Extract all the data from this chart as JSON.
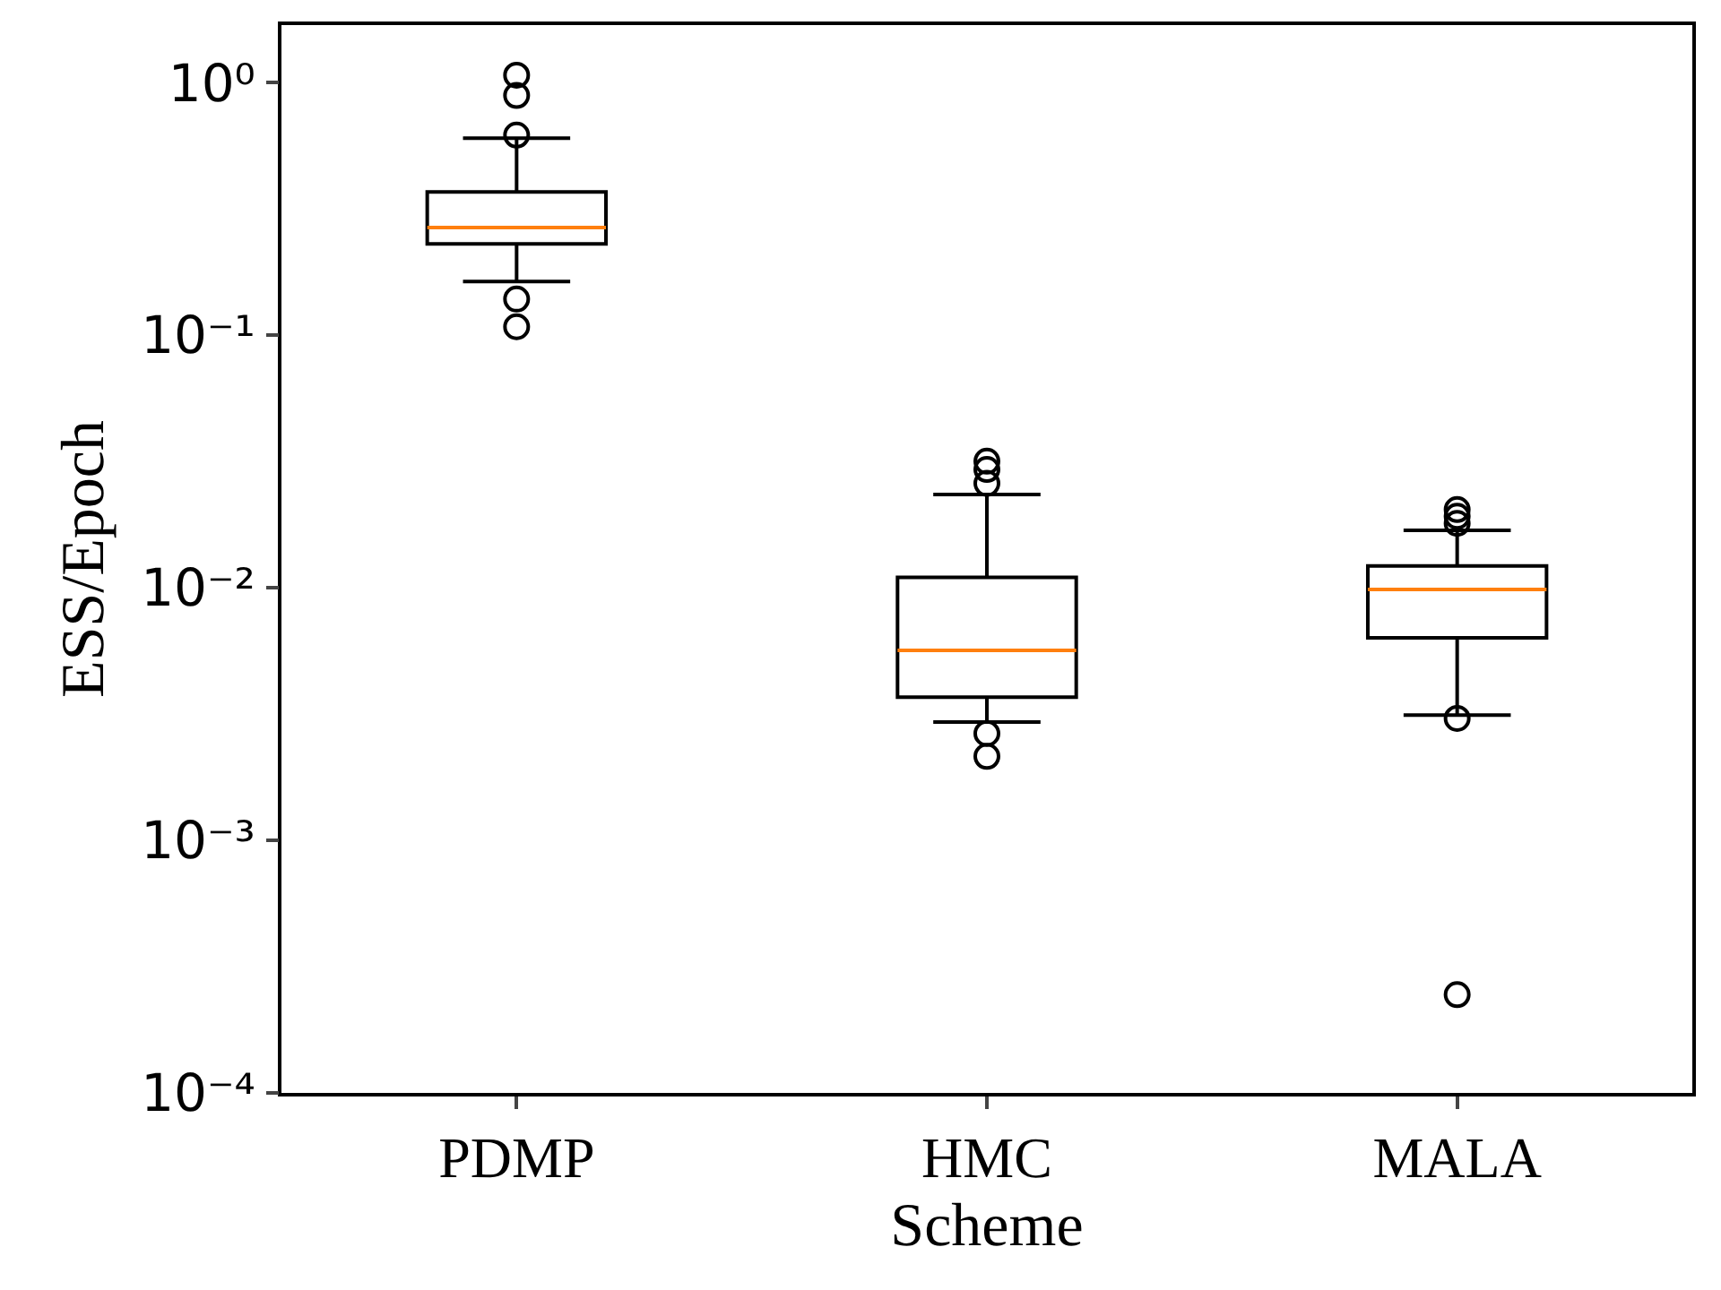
{
  "chart_data": {
    "type": "box",
    "xlabel": "Scheme",
    "ylabel": "ESS/Epoch",
    "categories": [
      "PDMP",
      "HMC",
      "MALA"
    ],
    "log": "y",
    "ylim": [
      0.0001,
      1.69
    ],
    "yticks": [
      {
        "value": 0.0001,
        "label": "10⁻⁴"
      },
      {
        "value": 0.001,
        "label": "10⁻³"
      },
      {
        "value": 0.01,
        "label": "10⁻²"
      },
      {
        "value": 0.1,
        "label": "10⁻¹"
      },
      {
        "value": 1,
        "label": "10⁰"
      }
    ],
    "grid": false,
    "marker": "circle",
    "boxes": [
      {
        "low": 0.163,
        "q1": 0.23,
        "median": 0.267,
        "q3": 0.369,
        "high": 0.603,
        "outliers": [
          1.07,
          0.89,
          0.62,
          0.139,
          0.108
        ]
      },
      {
        "low": 0.00294,
        "q1": 0.00369,
        "median": 0.00565,
        "q3": 0.011,
        "high": 0.0234,
        "outliers": [
          0.0317,
          0.0294,
          0.0259,
          0.00265,
          0.00215
        ]
      },
      {
        "low": 0.00313,
        "q1": 0.00633,
        "median": 0.00985,
        "q3": 0.0122,
        "high": 0.0169,
        "outliers": [
          0.0204,
          0.0192,
          0.018,
          0.00304,
          0.000245
        ]
      }
    ]
  }
}
